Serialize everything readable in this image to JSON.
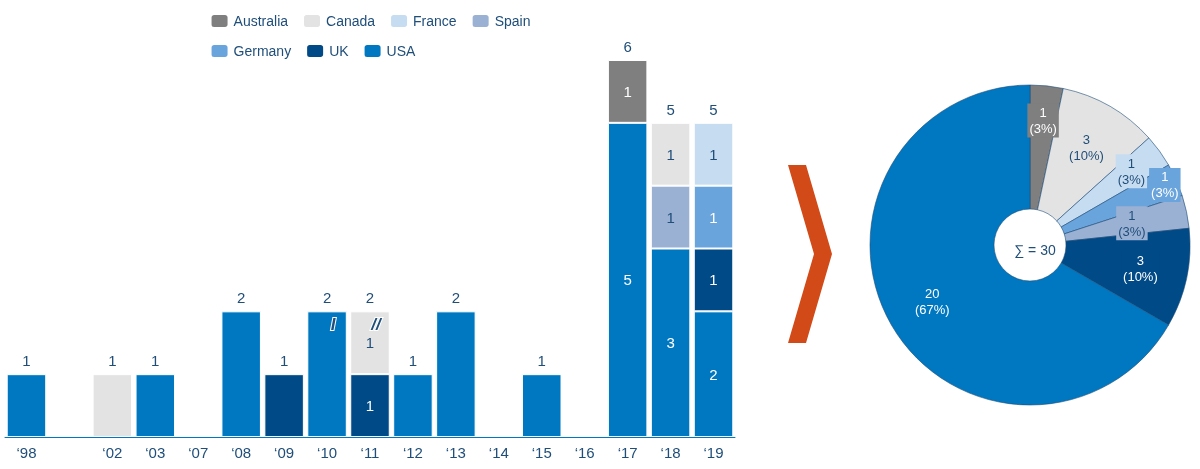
{
  "chart_data": [
    {
      "type": "bar",
      "stacked": true,
      "legend": "top",
      "categories": [
        "‘98",
        null,
        "‘02",
        "‘03",
        "‘07",
        "‘08",
        "‘09",
        "‘10",
        "‘11",
        "‘12",
        "‘13",
        "‘14",
        "‘15",
        "‘16",
        "‘17",
        "‘18",
        "‘19"
      ],
      "series": [
        {
          "name": "USA",
          "color": "#0078c1",
          "values": [
            1,
            null,
            null,
            1,
            null,
            2,
            null,
            2,
            null,
            1,
            2,
            null,
            1,
            null,
            5,
            3,
            2
          ],
          "value_labels": [
            null,
            null,
            null,
            null,
            null,
            null,
            null,
            null,
            null,
            null,
            null,
            null,
            null,
            null,
            "5",
            "3",
            "2"
          ]
        },
        {
          "name": "UK",
          "color": "#004a87",
          "values": [
            null,
            null,
            null,
            null,
            null,
            null,
            1,
            null,
            1,
            null,
            null,
            null,
            null,
            null,
            null,
            null,
            1
          ],
          "value_labels": [
            null,
            null,
            null,
            null,
            null,
            null,
            null,
            null,
            "1",
            null,
            null,
            null,
            null,
            null,
            null,
            null,
            "1"
          ]
        },
        {
          "name": "Germany",
          "color": "#6aa4dc",
          "values": [
            null,
            null,
            null,
            null,
            null,
            null,
            null,
            null,
            null,
            null,
            null,
            null,
            null,
            null,
            null,
            null,
            1
          ],
          "value_labels": [
            null,
            null,
            null,
            null,
            null,
            null,
            null,
            null,
            null,
            null,
            null,
            null,
            null,
            null,
            null,
            null,
            "1"
          ]
        },
        {
          "name": "Spain",
          "color": "#9bb1d3",
          "values": [
            null,
            null,
            null,
            null,
            null,
            null,
            null,
            null,
            null,
            null,
            null,
            null,
            null,
            null,
            null,
            1,
            null
          ],
          "value_labels": [
            null,
            null,
            null,
            null,
            null,
            null,
            null,
            null,
            null,
            null,
            null,
            null,
            null,
            null,
            null,
            "1",
            null
          ]
        },
        {
          "name": "France",
          "color": "#c6dcf1",
          "values": [
            null,
            null,
            null,
            null,
            null,
            null,
            null,
            null,
            null,
            null,
            null,
            null,
            null,
            null,
            null,
            null,
            1
          ],
          "value_labels": [
            null,
            null,
            null,
            null,
            null,
            null,
            null,
            null,
            null,
            null,
            null,
            null,
            null,
            null,
            null,
            null,
            "1"
          ]
        },
        {
          "name": "Canada",
          "color": "#e3e3e3",
          "values": [
            null,
            null,
            1,
            null,
            null,
            null,
            null,
            null,
            1,
            null,
            null,
            null,
            null,
            null,
            null,
            1,
            null
          ],
          "value_labels": [
            null,
            null,
            null,
            null,
            null,
            null,
            null,
            null,
            "1",
            null,
            null,
            null,
            null,
            null,
            null,
            "1",
            null
          ]
        },
        {
          "name": "Australia",
          "color": "#7f7f7f",
          "values": [
            null,
            null,
            null,
            null,
            null,
            null,
            null,
            null,
            null,
            null,
            null,
            null,
            null,
            null,
            1,
            null,
            null
          ],
          "value_labels": [
            null,
            null,
            null,
            null,
            null,
            null,
            null,
            null,
            null,
            null,
            null,
            null,
            null,
            null,
            "1",
            null,
            null
          ]
        }
      ],
      "totals": [
        "1",
        null,
        "1",
        "1",
        null,
        "2",
        "1",
        "2",
        "2",
        "1",
        "2",
        null,
        "1",
        null,
        "6",
        "5",
        "5"
      ],
      "annotations": [
        {
          "text": "I",
          "x": "‘10",
          "y": 2
        },
        {
          "text": "//",
          "x": "‘11",
          "y": 2
        }
      ]
    },
    {
      "type": "donut",
      "legend": false,
      "categories": [
        null,
        null,
        null,
        null,
        null,
        null,
        null
      ],
      "values": [
        1,
        3,
        1,
        1,
        1,
        3,
        20
      ],
      "colors": [
        "#7f7f7f",
        "#e3e3e3",
        "#c6dcf1",
        "#6aa4dc",
        "#9bb1d3",
        "#004a87",
        "#0078c1"
      ],
      "value_labels": [
        "1\n(3%)",
        "3\n(10%)",
        "1\n(3%)",
        "1\n(3%)",
        "1\n(3%)",
        "3\n(10%)",
        "20\n(67%)"
      ],
      "annotations": [
        "∑ = 30"
      ]
    }
  ]
}
